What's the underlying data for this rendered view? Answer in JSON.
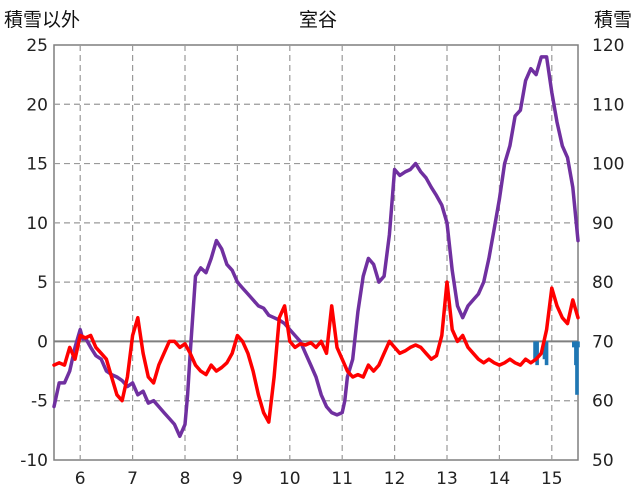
{
  "chart_data": {
    "type": "line",
    "title": "室谷",
    "ylabel_left": "積雪以外",
    "ylabel_right": "積雪",
    "x_categories": [
      "6",
      "7",
      "8",
      "9",
      "10",
      "11",
      "12",
      "13",
      "14",
      "15"
    ],
    "x_range": [
      5.5,
      15.5
    ],
    "y_left": {
      "range": [
        -10,
        25
      ],
      "ticks": [
        "25",
        "20",
        "15",
        "10",
        "5",
        "0",
        "-5",
        "-10"
      ]
    },
    "y_right": {
      "range": [
        50,
        120
      ],
      "ticks": [
        "120",
        "110",
        "100",
        "90",
        "80",
        "70",
        "60",
        "50"
      ]
    },
    "grid": "dashed-vertical-and-horizontal",
    "series": [
      {
        "color": "#7030a0",
        "axis": "left",
        "x": [
          5.5,
          5.55,
          5.6,
          5.7,
          5.8,
          5.9,
          6.0,
          6.05,
          6.1,
          6.2,
          6.3,
          6.4,
          6.5,
          6.6,
          6.7,
          6.8,
          6.9,
          7.0,
          7.1,
          7.2,
          7.3,
          7.4,
          7.5,
          7.6,
          7.7,
          7.8,
          7.9,
          8.0,
          8.05,
          8.1,
          8.2,
          8.3,
          8.4,
          8.5,
          8.6,
          8.7,
          8.8,
          8.9,
          9.0,
          9.1,
          9.2,
          9.3,
          9.4,
          9.5,
          9.6,
          9.7,
          9.8,
          9.9,
          10.0,
          10.1,
          10.2,
          10.3,
          10.4,
          10.5,
          10.6,
          10.7,
          10.8,
          10.9,
          11.0,
          11.05,
          11.1,
          11.2,
          11.3,
          11.4,
          11.5,
          11.6,
          11.7,
          11.8,
          11.9,
          12.0,
          12.1,
          12.2,
          12.3,
          12.4,
          12.5,
          12.6,
          12.7,
          12.8,
          12.9,
          13.0,
          13.1,
          13.2,
          13.3,
          13.4,
          13.5,
          13.6,
          13.7,
          13.8,
          13.9,
          14.0,
          14.1,
          14.2,
          14.3,
          14.4,
          14.5,
          14.6,
          14.7,
          14.8,
          14.9,
          15.0,
          15.1,
          15.2,
          15.3,
          15.4,
          15.5
        ],
        "y": [
          -5.5,
          -4.5,
          -3.5,
          -3.5,
          -2.5,
          -0.5,
          1.0,
          0.2,
          0.3,
          -0.5,
          -1.2,
          -1.5,
          -2.5,
          -2.8,
          -3.0,
          -3.3,
          -3.8,
          -3.5,
          -4.5,
          -4.2,
          -5.2,
          -5.0,
          -5.5,
          -6.0,
          -6.5,
          -7.0,
          -8.0,
          -7.0,
          -4.5,
          -1.0,
          5.5,
          6.2,
          5.8,
          7.0,
          8.5,
          7.8,
          6.5,
          6.0,
          5.0,
          4.5,
          4.0,
          3.5,
          3.0,
          2.8,
          2.2,
          2.0,
          1.8,
          1.5,
          1.0,
          0.5,
          0.0,
          -1.0,
          -2.0,
          -3.0,
          -4.5,
          -5.5,
          -6.0,
          -6.2,
          -6.0,
          -5.0,
          -3.0,
          -1.5,
          2.5,
          5.5,
          7.0,
          6.5,
          5.0,
          5.5,
          9.0,
          14.5,
          14.0,
          14.3,
          14.5,
          15.0,
          14.3,
          13.8,
          13.0,
          12.3,
          11.5,
          10.0,
          6.0,
          3.0,
          2.0,
          3.0,
          3.5,
          4.0,
          5.0,
          7.0,
          9.5,
          12.0,
          15.0,
          16.5,
          19.0,
          19.5,
          22.0,
          23.0,
          22.5,
          24.0,
          24.0,
          21.0,
          18.5,
          16.5,
          15.5,
          13.0,
          8.5
        ]
      },
      {
        "color": "#ff0000",
        "axis": "left",
        "x": [
          5.5,
          5.6,
          5.7,
          5.8,
          5.9,
          6.0,
          6.1,
          6.2,
          6.3,
          6.4,
          6.5,
          6.6,
          6.7,
          6.8,
          6.9,
          7.0,
          7.1,
          7.2,
          7.3,
          7.4,
          7.5,
          7.6,
          7.7,
          7.8,
          7.9,
          8.0,
          8.1,
          8.2,
          8.3,
          8.4,
          8.5,
          8.6,
          8.7,
          8.8,
          8.9,
          9.0,
          9.1,
          9.2,
          9.3,
          9.4,
          9.5,
          9.6,
          9.7,
          9.8,
          9.9,
          10.0,
          10.1,
          10.2,
          10.3,
          10.4,
          10.5,
          10.6,
          10.7,
          10.8,
          10.9,
          11.0,
          11.1,
          11.2,
          11.3,
          11.4,
          11.5,
          11.6,
          11.7,
          11.8,
          11.9,
          12.0,
          12.1,
          12.2,
          12.3,
          12.4,
          12.5,
          12.6,
          12.7,
          12.8,
          12.9,
          13.0,
          13.1,
          13.2,
          13.3,
          13.4,
          13.5,
          13.6,
          13.7,
          13.8,
          13.9,
          14.0,
          14.1,
          14.2,
          14.3,
          14.4,
          14.5,
          14.6,
          14.7,
          14.8,
          14.9,
          15.0,
          15.1,
          15.2,
          15.3,
          15.4,
          15.5
        ],
        "y": [
          -2.0,
          -1.8,
          -2.0,
          -0.5,
          -1.5,
          0.5,
          0.3,
          0.5,
          -0.5,
          -1.0,
          -1.5,
          -3.0,
          -4.5,
          -5.0,
          -3.0,
          0.5,
          2.0,
          -1.0,
          -3.0,
          -3.5,
          -2.0,
          -1.0,
          0.0,
          0.0,
          -0.5,
          -0.2,
          -1.0,
          -2.0,
          -2.5,
          -2.8,
          -2.0,
          -2.5,
          -2.2,
          -1.8,
          -1.0,
          0.5,
          0.0,
          -1.0,
          -2.5,
          -4.5,
          -6.0,
          -6.8,
          -3.0,
          2.0,
          3.0,
          0.0,
          -0.5,
          -0.2,
          -0.3,
          -0.1,
          -0.5,
          0.0,
          -1.0,
          3.0,
          -0.5,
          -1.5,
          -2.5,
          -3.0,
          -2.8,
          -3.0,
          -2.0,
          -2.5,
          -2.0,
          -1.0,
          0.0,
          -0.5,
          -1.0,
          -0.8,
          -0.5,
          -0.3,
          -0.5,
          -1.0,
          -1.5,
          -1.2,
          0.5,
          5.0,
          1.0,
          0.0,
          0.5,
          -0.5,
          -1.0,
          -1.5,
          -1.8,
          -1.5,
          -1.8,
          -2.0,
          -1.8,
          -1.5,
          -1.8,
          -2.0,
          -1.5,
          -1.8,
          -1.5,
          -1.0,
          1.0,
          4.5,
          3.0,
          2.0,
          1.5,
          3.5,
          2.0
        ]
      },
      {
        "color": "#1f77b4",
        "axis": "right",
        "type": "bar",
        "x": [
          14.68,
          14.72,
          14.86,
          14.9,
          15.42,
          15.46,
          15.48,
          15.5
        ],
        "y": [
          67,
          66,
          67,
          66,
          69,
          66,
          61,
          69
        ]
      }
    ]
  }
}
